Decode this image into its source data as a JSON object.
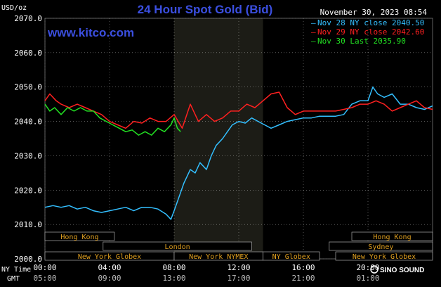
{
  "header": {
    "title": "24 Hour Spot Gold (Bid)",
    "unit": "USD/oz",
    "datetime": "November 30, 2023 08:54",
    "website": "www.kitco.com",
    "logo_text": "SINO SOUND"
  },
  "colors": {
    "background": "#000000",
    "title": "#3b4fe0",
    "website": "#3b4fe0",
    "grid": "#ffffff",
    "axis_text": "#ffffff",
    "session_band": "#1c1c16",
    "session_text": "#e0a020",
    "nov28": "#33bfff",
    "nov29": "#ff2020",
    "nov30": "#22e022"
  },
  "legend": [
    {
      "label": "Nov 28 NY close 2040.50",
      "color_key": "nov28"
    },
    {
      "label": "Nov 29 NY close 2042.60",
      "color_key": "nov29"
    },
    {
      "label": "Nov 30 Last 2035.90",
      "color_key": "nov30"
    }
  ],
  "x_axis": {
    "row1_label": "NY Time",
    "row2_label": "GMT",
    "ny_ticks": [
      "00:00",
      "04:00",
      "08:00",
      "12:00",
      "16:00",
      "20:00"
    ],
    "gmt_ticks": [
      "05:00",
      "09:00",
      "13:00",
      "17:00",
      "21:00",
      "01:00"
    ]
  },
  "sessions": [
    {
      "label": "Hong Kong",
      "start": 0,
      "end": 4.3
    },
    {
      "label": "London",
      "start": 3.6,
      "end": 12.8
    },
    {
      "label": "New York Globex",
      "start": 0,
      "end": 8.0
    },
    {
      "label": "New York NYMEX",
      "start": 8.0,
      "end": 13.5
    },
    {
      "label": "NY Globex",
      "start": 13.5,
      "end": 17.0
    },
    {
      "label": "Hong Kong",
      "start": 19.0,
      "end": 24.0
    },
    {
      "label": "Sydney",
      "start": 17.6,
      "end": 24.0
    },
    {
      "label": "New York Globex",
      "start": 18.0,
      "end": 24.0
    }
  ],
  "chart_data": {
    "type": "line",
    "title": "24 Hour Spot Gold (Bid)",
    "ylabel": "USD/oz",
    "x_unit": "hours (NY time) since 00:00",
    "xlim": [
      0,
      24
    ],
    "ylim": [
      2000,
      2070
    ],
    "y_ticks": [
      "2000.0",
      "2010.0",
      "2020.0",
      "2030.0",
      "2040.0",
      "2050.0",
      "2060.0",
      "2070.0"
    ],
    "y_tick_values": [
      2000,
      2010,
      2020,
      2030,
      2040,
      2050,
      2060,
      2070
    ],
    "grid": true,
    "legend_position": "top-right",
    "highlight_range": [
      8.0,
      13.5
    ],
    "series": [
      {
        "name": "Nov 28 NY close 2040.50",
        "color_key": "nov28",
        "x": [
          0,
          0.5,
          1,
          1.5,
          2,
          2.5,
          3,
          3.5,
          4,
          4.5,
          5,
          5.5,
          6,
          6.5,
          7,
          7.5,
          7.8,
          8.0,
          8.3,
          8.6,
          9.0,
          9.3,
          9.6,
          10.0,
          10.3,
          10.6,
          11.0,
          11.3,
          11.6,
          12.0,
          12.4,
          12.8,
          13.2,
          13.6,
          14.0,
          14.5,
          15.0,
          15.5,
          16.0,
          16.5,
          17.0,
          17.5,
          18.0,
          18.5,
          19.0,
          19.5,
          20.0,
          20.3,
          20.6,
          21.0,
          21.5,
          22.0,
          22.5,
          23.0,
          23.5,
          24.0
        ],
        "values": [
          2015,
          2015.5,
          2015,
          2015.5,
          2014.5,
          2015,
          2014,
          2013.5,
          2014,
          2014.5,
          2015,
          2014,
          2015,
          2015,
          2014.5,
          2013,
          2011.5,
          2014,
          2018,
          2022,
          2026,
          2025,
          2028,
          2026,
          2030,
          2033,
          2035,
          2037,
          2039,
          2040,
          2039.5,
          2041,
          2040,
          2039,
          2038,
          2039,
          2040,
          2040.5,
          2041,
          2041,
          2041.5,
          2041.5,
          2041.5,
          2042,
          2045,
          2046,
          2046,
          2050,
          2048,
          2047,
          2048,
          2045,
          2045,
          2044,
          2043.5,
          2044.5
        ]
      },
      {
        "name": "Nov 29 NY close 2042.60",
        "color_key": "nov29",
        "x": [
          0,
          0.3,
          0.7,
          1,
          1.5,
          2,
          2.5,
          3,
          3.5,
          4,
          4.5,
          5,
          5.5,
          6,
          6.5,
          7,
          7.5,
          8,
          8.5,
          9,
          9.5,
          10,
          10.5,
          11,
          11.5,
          12,
          12.5,
          13,
          13.5,
          14,
          14.5,
          15,
          15.5,
          16,
          16.5,
          17,
          17.5,
          18,
          18.5,
          19,
          19.5,
          20,
          20.5,
          21,
          21.5,
          22,
          22.5,
          23,
          23.5,
          24
        ],
        "values": [
          2046,
          2048,
          2046,
          2045,
          2044,
          2045,
          2044,
          2043,
          2042,
          2040,
          2039,
          2038,
          2040,
          2039.5,
          2041,
          2040,
          2040,
          2042,
          2038,
          2045,
          2040,
          2042,
          2040,
          2041,
          2043,
          2043,
          2045,
          2044,
          2046,
          2048,
          2048.5,
          2044,
          2042,
          2043,
          2043,
          2043,
          2043,
          2043,
          2043.5,
          2044,
          2045,
          2045,
          2046,
          2045,
          2043,
          2044,
          2045,
          2046,
          2044,
          2043.5
        ]
      },
      {
        "name": "Nov 30 Last 2035.90",
        "color_key": "nov30",
        "x": [
          0,
          0.3,
          0.6,
          1,
          1.4,
          1.8,
          2.2,
          2.6,
          3,
          3.4,
          3.8,
          4.2,
          4.6,
          5,
          5.4,
          5.8,
          6.2,
          6.6,
          7,
          7.4,
          7.8,
          8,
          8.2,
          8.4
        ],
        "values": [
          2045,
          2043,
          2044,
          2042,
          2044,
          2043,
          2044,
          2043,
          2043,
          2041,
          2040,
          2039,
          2038,
          2037,
          2037.5,
          2036,
          2037,
          2036,
          2038,
          2037,
          2039,
          2041,
          2038,
          2037
        ]
      }
    ]
  }
}
